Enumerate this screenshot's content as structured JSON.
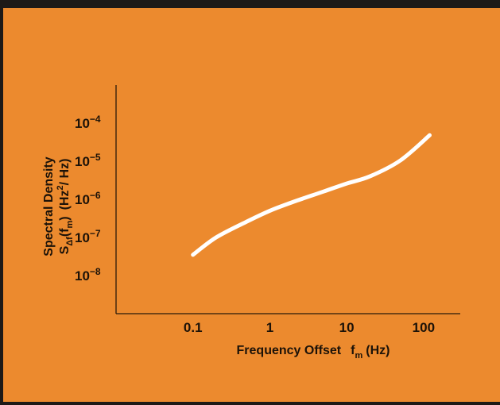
{
  "chart_data": {
    "type": "line",
    "title": "",
    "xlabel": "Frequency Offset",
    "xlabel_symbol": "f",
    "xlabel_sub": "m",
    "xlabel_unit": "(Hz)",
    "ylabel_line1": "Spectral Density",
    "ylabel_line2": {
      "S": "S",
      "sub": "Δf",
      "arg": "(f",
      "arg_sub": "m",
      "close": ")",
      "unit_open": "(Hz",
      "unit_sup": "2",
      "unit_close": "/ Hz)"
    },
    "x_scale": "log",
    "y_scale": "log",
    "xlim": [
      0.01,
      300
    ],
    "ylim": [
      1e-09,
      0.001
    ],
    "x_ticks": [
      {
        "value": 0.1,
        "label": "0.1"
      },
      {
        "value": 1,
        "label": "1"
      },
      {
        "value": 10,
        "label": "10"
      },
      {
        "value": 100,
        "label": "100"
      }
    ],
    "y_ticks": [
      {
        "value": 1e-08,
        "base": "10",
        "exp": "−8"
      },
      {
        "value": 1e-07,
        "base": "10",
        "exp": "−7"
      },
      {
        "value": 1e-06,
        "base": "10",
        "exp": "−6"
      },
      {
        "value": 1e-05,
        "base": "10",
        "exp": "−5"
      },
      {
        "value": 0.0001,
        "base": "10",
        "exp": "−4"
      }
    ],
    "grid": false,
    "series": [
      {
        "color": "#ffffff",
        "points": [
          [
            0.1,
            3.5e-08
          ],
          [
            0.2,
            1e-07
          ],
          [
            0.5,
            2.6e-07
          ],
          [
            1,
            5e-07
          ],
          [
            2,
            8.5e-07
          ],
          [
            5,
            1.6e-06
          ],
          [
            10,
            2.6e-06
          ],
          [
            20,
            4e-06
          ],
          [
            50,
            1.05e-05
          ],
          [
            120,
            4.8e-05
          ]
        ]
      }
    ]
  }
}
